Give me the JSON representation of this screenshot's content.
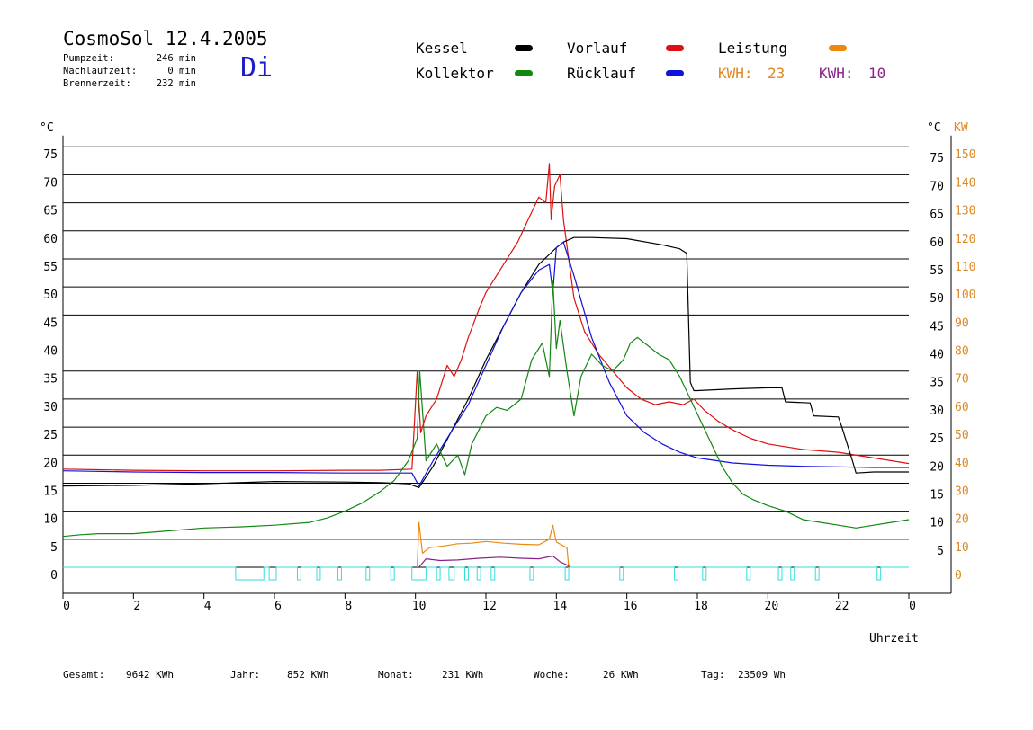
{
  "header": {
    "title": "CosmoSol 12.4.2005",
    "day": "Di",
    "info": [
      {
        "label": "Pumpzeit:",
        "value": "246 min"
      },
      {
        "label": "Nachlaufzeit:",
        "value": "0 min"
      },
      {
        "label": "Brennerzeit:",
        "value": "232 min"
      }
    ]
  },
  "legend": [
    {
      "name": "Kessel",
      "color": "#000000"
    },
    {
      "name": "Vorlauf",
      "color": "#dd1111"
    },
    {
      "name": "Leistung",
      "color": "#ee8811"
    },
    {
      "name": "Kollektor",
      "color": "#118811"
    },
    {
      "name": "Rücklauf",
      "color": "#1111dd"
    }
  ],
  "kwh": [
    {
      "label": "KWH:",
      "value": "23",
      "color": "#dd8822"
    },
    {
      "label": "KWH:",
      "value": "10",
      "color": "#882288"
    }
  ],
  "footer": [
    {
      "label": "Gesamt:",
      "value": "9642 KWh"
    },
    {
      "label": "Jahr:",
      "value": "852 KWh"
    },
    {
      "label": "Monat:",
      "value": "231 KWh"
    },
    {
      "label": "Woche:",
      "value": "26 KWh"
    },
    {
      "label": "Tag:",
      "value": "23509 Wh"
    }
  ],
  "chart_data": {
    "type": "line",
    "xlabel": "Uhrzeit",
    "ylabel_left": "°C",
    "ylabel_right_c": "°C",
    "ylabel_right_kw": "KW",
    "x_range": [
      0,
      24
    ],
    "y_range": [
      0,
      80
    ],
    "x_ticks": [
      "0",
      "2",
      "4",
      "6",
      "8",
      "10",
      "12",
      "14",
      "16",
      "18",
      "20",
      "22",
      "0"
    ],
    "y_ticks": [
      0,
      5,
      10,
      15,
      20,
      25,
      30,
      35,
      40,
      45,
      50,
      55,
      60,
      65,
      70,
      75
    ],
    "y_ticks_right_c": [
      5,
      10,
      15,
      20,
      25,
      30,
      35,
      40,
      45,
      50,
      55,
      60,
      65,
      70,
      75
    ],
    "kw_ticks": [
      0,
      10,
      20,
      30,
      40,
      50,
      60,
      70,
      80,
      90,
      100,
      110,
      120,
      130,
      140,
      150
    ],
    "grid": "horizontal",
    "series": [
      {
        "name": "Vorlauf",
        "color": "#dd1111",
        "x": [
          0,
          1,
          2,
          4,
          6,
          8,
          9,
          9.9,
          10.05,
          10.15,
          10.3,
          10.6,
          10.9,
          11.1,
          11.3,
          11.5,
          11.8,
          12,
          12.3,
          12.6,
          12.9,
          13.2,
          13.5,
          13.7,
          13.8,
          13.85,
          13.95,
          14.1,
          14.2,
          14.35,
          14.5,
          14.8,
          15.2,
          15.6,
          16,
          16.4,
          16.8,
          17.2,
          17.6,
          17.9,
          18.2,
          18.6,
          19,
          19.5,
          20,
          21,
          22,
          23,
          24
        ],
        "values": [
          17.5,
          17.4,
          17.3,
          17.2,
          17.2,
          17.3,
          17.3,
          17.5,
          35,
          24,
          27,
          30,
          36,
          34,
          37,
          41,
          46,
          49,
          52,
          55,
          58,
          62,
          66,
          65,
          72,
          62,
          68,
          70,
          62,
          55,
          48,
          42,
          38,
          35,
          32,
          30,
          29,
          29.5,
          29,
          30,
          28,
          26,
          24.5,
          23,
          22,
          21,
          20.5,
          19.5,
          18.5
        ]
      },
      {
        "name": "Kessel",
        "color": "#000000",
        "x": [
          0,
          2,
          4,
          6,
          8,
          9,
          9.8,
          10.1,
          10.5,
          11,
          11.5,
          12,
          12.5,
          13,
          13.5,
          14,
          14.2,
          14.5,
          15,
          16,
          17,
          17.5,
          17.7,
          17.8,
          17.9,
          18,
          19,
          20,
          20.4,
          20.5,
          21.2,
          21.3,
          22,
          22.1,
          22.4,
          22.5,
          23,
          24
        ],
        "values": [
          14.5,
          14.6,
          14.9,
          15.3,
          15.2,
          15.1,
          14.9,
          14.2,
          18,
          24,
          30,
          37,
          43,
          49,
          54,
          57,
          58,
          58.8,
          58.8,
          58.6,
          57.5,
          56.8,
          56,
          33,
          31.5,
          31.5,
          31.8,
          32,
          32,
          29.5,
          29.3,
          27,
          26.8,
          25,
          19,
          16.8,
          17,
          17
        ]
      },
      {
        "name": "Rücklauf",
        "color": "#1111dd",
        "x": [
          0,
          2,
          4,
          6,
          8,
          9,
          9.9,
          10.1,
          10.5,
          11,
          11.5,
          12,
          12.5,
          13,
          13.5,
          13.8,
          13.9,
          14,
          14.2,
          14.5,
          15,
          15.5,
          16,
          16.5,
          17,
          17.5,
          18,
          19,
          20,
          21,
          22,
          23,
          24
        ],
        "values": [
          17.2,
          17,
          16.9,
          16.9,
          16.8,
          16.8,
          16.8,
          14.5,
          19,
          24,
          29,
          36,
          43,
          49,
          53,
          54,
          49,
          57,
          58,
          52,
          41,
          33,
          27,
          24,
          22,
          20.5,
          19.5,
          18.6,
          18.2,
          18,
          17.9,
          17.8,
          17.8
        ]
      },
      {
        "name": "Kollektor",
        "color": "#118811",
        "x": [
          0,
          0.5,
          1,
          2,
          3,
          4,
          5,
          6,
          7,
          7.5,
          8,
          8.5,
          9,
          9.4,
          9.8,
          10.05,
          10.12,
          10.3,
          10.6,
          10.9,
          11.2,
          11.4,
          11.6,
          12,
          12.3,
          12.6,
          13,
          13.3,
          13.6,
          13.8,
          13.9,
          14,
          14.1,
          14.3,
          14.5,
          14.7,
          15,
          15.3,
          15.6,
          15.9,
          16.1,
          16.3,
          16.6,
          16.9,
          17.2,
          17.5,
          17.8,
          18.1,
          18.4,
          18.7,
          19,
          19.3,
          19.6,
          20,
          20.5,
          21,
          21.5,
          22,
          22.5,
          23,
          23.5,
          24
        ],
        "values": [
          5.5,
          5.8,
          6,
          6,
          6.5,
          7,
          7.2,
          7.5,
          8,
          8.8,
          10,
          11.5,
          13.5,
          15.5,
          19,
          23,
          35,
          19,
          22,
          18,
          20,
          16.5,
          22,
          27,
          28.5,
          28,
          30,
          37,
          40,
          34,
          51,
          39,
          44,
          35,
          27,
          34,
          38,
          36,
          35,
          37,
          40,
          41,
          39.5,
          38,
          37,
          34,
          30,
          26,
          22,
          18,
          15,
          13,
          12,
          11,
          10,
          8.5,
          8,
          7.5,
          7,
          7.5,
          8,
          8.5
        ]
      },
      {
        "name": "Leistung",
        "color": "#ee8811",
        "x": [
          10.05,
          10.1,
          10.2,
          10.4,
          10.8,
          11.2,
          11.6,
          12,
          12.5,
          13,
          13.5,
          13.8,
          13.9,
          14,
          14.2,
          14.3,
          14.35
        ],
        "values": [
          0,
          8,
          2.5,
          3.5,
          3.8,
          4.2,
          4.3,
          4.6,
          4.3,
          4.1,
          4.0,
          5.0,
          7.5,
          4.5,
          3.8,
          3.5,
          0
        ]
      },
      {
        "name": "Leistung (KWH 10)",
        "color": "#882288",
        "x": [
          10.1,
          10.3,
          10.7,
          11.2,
          11.8,
          12.4,
          13,
          13.5,
          13.9,
          14.1,
          14.3,
          14.4
        ],
        "values": [
          0,
          1.5,
          1.2,
          1.3,
          1.6,
          1.8,
          1.6,
          1.5,
          2.0,
          1.0,
          0.4,
          0
        ]
      }
    ],
    "pump_on_periods": [
      [
        4.9,
        5.7
      ],
      [
        5.85,
        6.05
      ],
      [
        6.65,
        6.75
      ],
      [
        7.2,
        7.3
      ],
      [
        7.8,
        7.9
      ],
      [
        8.6,
        8.7
      ],
      [
        9.3,
        9.4
      ],
      [
        9.9,
        10.3
      ],
      [
        10.6,
        10.7
      ],
      [
        10.95,
        11.1
      ],
      [
        11.4,
        11.5
      ],
      [
        11.75,
        11.85
      ],
      [
        12.15,
        12.25
      ],
      [
        13.25,
        13.35
      ],
      [
        14.25,
        14.35
      ],
      [
        15.8,
        15.9
      ],
      [
        17.35,
        17.45
      ],
      [
        18.15,
        18.25
      ],
      [
        19.4,
        19.5
      ],
      [
        20.3,
        20.4
      ],
      [
        20.65,
        20.75
      ],
      [
        21.35,
        21.45
      ],
      [
        23.1,
        23.2
      ]
    ]
  }
}
